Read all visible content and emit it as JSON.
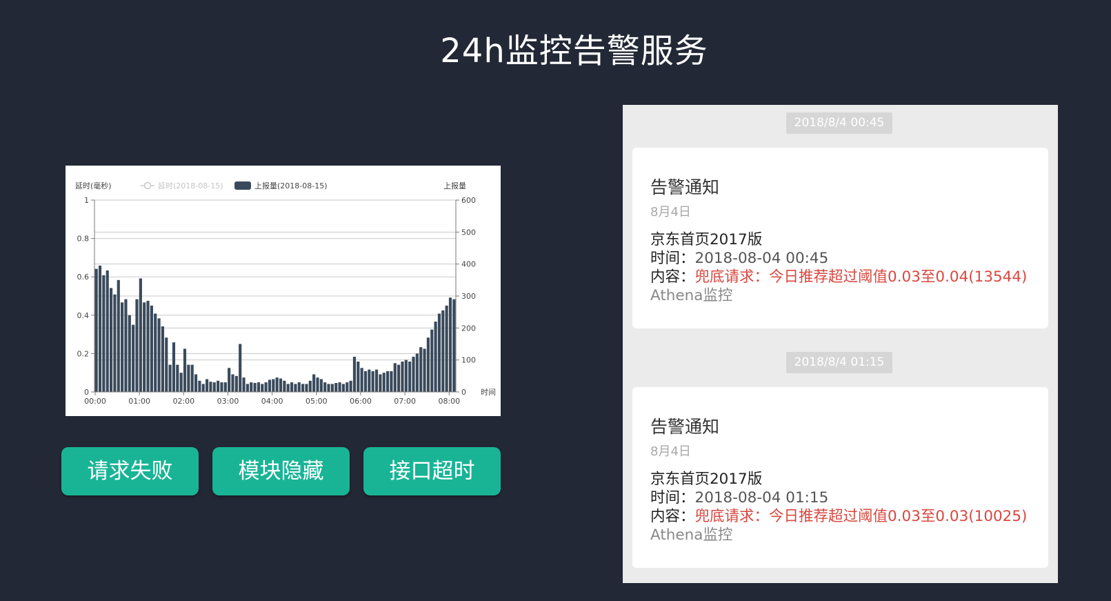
{
  "title": "24h监控告警服务",
  "chart": {
    "left_axis_title": "延时(毫秒)",
    "legend_latency": "延时(2018-08-15)",
    "legend_reports": "上报量(2018-08-15)",
    "right_axis_title": "上报量",
    "right_axis_end": "时间",
    "bar_color": "#3a4a5c"
  },
  "chart_data": {
    "type": "bar",
    "xlabel": "时间",
    "ylabel_left": "延时(毫秒)",
    "ylabel_right": "上报量",
    "ylim_left": [
      0,
      1
    ],
    "ylim_right": [
      0,
      600
    ],
    "left_ticks": [
      "0",
      "0.2",
      "0.4",
      "0.6",
      "0.8",
      "1"
    ],
    "right_ticks": [
      "0",
      "100",
      "200",
      "300",
      "400",
      "500",
      "600"
    ],
    "x_ticks": [
      "00:00",
      "01:00",
      "02:00",
      "03:00",
      "04:00",
      "05:00",
      "06:00",
      "07:00",
      "08:00"
    ],
    "grid": true,
    "legend_position": "top",
    "series": [
      {
        "name": "上报量(2018-08-15)",
        "axis": "right",
        "values": [
          385,
          395,
          365,
          380,
          325,
          305,
          350,
          280,
          290,
          240,
          210,
          290,
          355,
          280,
          285,
          270,
          245,
          230,
          205,
          170,
          85,
          155,
          85,
          60,
          135,
          85,
          85,
          55,
          35,
          25,
          40,
          32,
          30,
          35,
          30,
          30,
          75,
          55,
          50,
          150,
          45,
          25,
          30,
          28,
          30,
          25,
          30,
          38,
          40,
          45,
          42,
          35,
          25,
          30,
          25,
          30,
          25,
          25,
          35,
          55,
          45,
          40,
          30,
          25,
          25,
          28,
          30,
          25,
          30,
          35,
          110,
          95,
          75,
          65,
          70,
          65,
          70,
          55,
          60,
          65,
          65,
          90,
          85,
          95,
          100,
          95,
          110,
          120,
          140,
          135,
          170,
          195,
          220,
          245,
          255,
          270,
          295,
          290
        ]
      }
    ]
  },
  "buttons": [
    "请求失败",
    "模块隐藏",
    "接口超时"
  ],
  "messages": [
    {
      "timestamp": "2018/8/4 00:45",
      "title": "告警通知",
      "date": "8月4日",
      "app": "京东首页2017版",
      "time_label": "时间：",
      "time_value": "2018-08-04 00:45",
      "content_label": "内容：",
      "content_value": "兜底请求：今日推荐超过阈值0.03至0.04(13544)",
      "source": "Athena监控"
    },
    {
      "timestamp": "2018/8/4 01:15",
      "title": "告警通知",
      "date": "8月4日",
      "app": "京东首页2017版",
      "time_label": "时间：",
      "time_value": "2018-08-04 01:15",
      "content_label": "内容：",
      "content_value": "兜底请求：今日推荐超过阈值0.03至0.03(10025)",
      "source": "Athena监控"
    }
  ]
}
